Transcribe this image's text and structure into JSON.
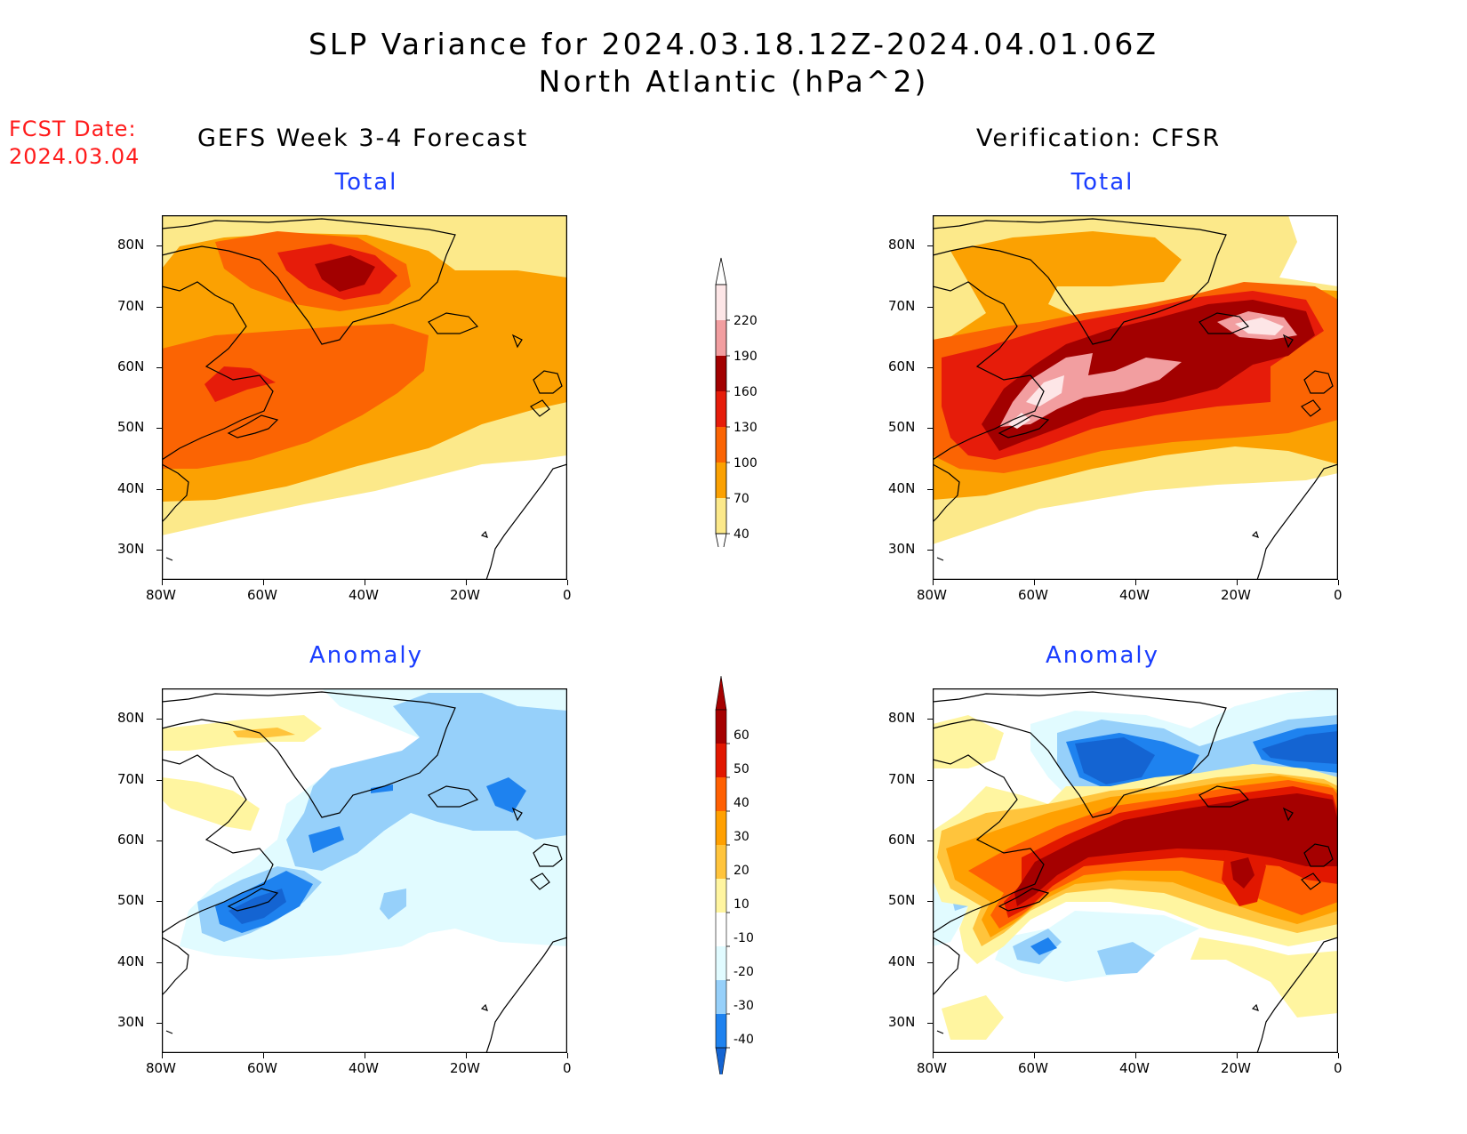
{
  "header": {
    "title_line1": "SLP Variance for 2024.03.18.12Z-2024.04.01.06Z",
    "title_line2": "North Atlantic (hPa^2)"
  },
  "fcst": {
    "label": "FCST Date:",
    "date": "2024.03.04"
  },
  "columns": {
    "left": "GEFS Week 3-4 Forecast",
    "right": "Verification: CFSR"
  },
  "panels": {
    "total_label": "Total",
    "anomaly_label": "Anomaly"
  },
  "axes": {
    "lat_ticks": [
      "80N",
      "70N",
      "60N",
      "50N",
      "40N",
      "30N"
    ],
    "lat_values": [
      80,
      70,
      60,
      50,
      40,
      30
    ],
    "lon_ticks": [
      "80W",
      "60W",
      "40W",
      "20W",
      "0"
    ],
    "lon_values": [
      -80,
      -60,
      -40,
      -20,
      0
    ],
    "lat_range": [
      25,
      85
    ],
    "lon_range": [
      -80,
      0
    ]
  },
  "legend_total": {
    "labels": [
      "40",
      "70",
      "100",
      "130",
      "160",
      "190",
      "220"
    ],
    "colors": [
      "#fce98a",
      "#fba102",
      "#fb6403",
      "#e61c0a",
      "#a20000",
      "#f29ea0",
      "#fde6e7"
    ]
  },
  "legend_anomaly": {
    "labels": [
      "-40",
      "-30",
      "-20",
      "-10",
      "10",
      "20",
      "30",
      "40",
      "50",
      "60"
    ],
    "colors": [
      "#1464d2",
      "#1e82ef",
      "#96d0fa",
      "#e1fbff",
      "#ffffff",
      "#fff5a0",
      "#ffc43c",
      "#ffa001",
      "#ff6002",
      "#e11700",
      "#a50000"
    ]
  }
}
